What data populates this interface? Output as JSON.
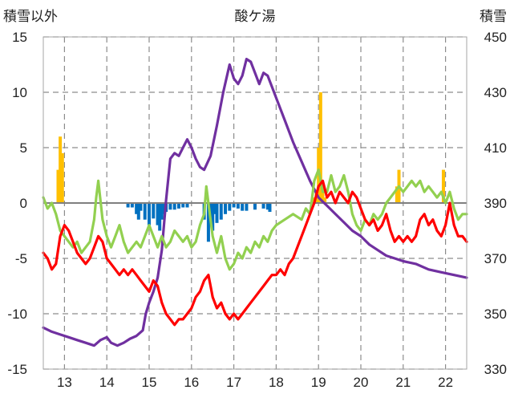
{
  "chart_data": {
    "type": "line",
    "title": "酸ケ湯",
    "y_left_label": "積雪以外",
    "y_right_label": "積雪",
    "xlim": [
      12.5,
      22.5
    ],
    "ylim_left": [
      -15,
      15
    ],
    "ylim_right": [
      330,
      450
    ],
    "x_ticks": [
      "13",
      "14",
      "15",
      "16",
      "17",
      "18",
      "19",
      "20",
      "21",
      "22"
    ],
    "y_left_ticks": [
      "15",
      "10",
      "5",
      "0",
      "-5",
      "-10",
      "-15"
    ],
    "y_right_ticks": [
      "450",
      "430",
      "410",
      "390",
      "370",
      "350",
      "330"
    ],
    "grid": true,
    "colors": {
      "snow_depth": "#7030a0",
      "max_temp": "#92d050",
      "min_temp": "#ff0000",
      "positive_bars": "#ffc000",
      "negative_bars": "#0070c0"
    },
    "series": [
      {
        "key": "snow_depth",
        "axis": "right",
        "values": [
          [
            12.5,
            345
          ],
          [
            12.7,
            343.5
          ],
          [
            12.9,
            342.5
          ],
          [
            13.1,
            341.5
          ],
          [
            13.3,
            340.5
          ],
          [
            13.5,
            339.5
          ],
          [
            13.7,
            338.5
          ],
          [
            13.85,
            340.5
          ],
          [
            14.0,
            341.5
          ],
          [
            14.1,
            339.5
          ],
          [
            14.25,
            338.5
          ],
          [
            14.4,
            339.5
          ],
          [
            14.55,
            341
          ],
          [
            14.7,
            342
          ],
          [
            14.85,
            344
          ],
          [
            14.92,
            350
          ],
          [
            15.0,
            354
          ],
          [
            15.1,
            358
          ],
          [
            15.2,
            363
          ],
          [
            15.3,
            373
          ],
          [
            15.4,
            391
          ],
          [
            15.5,
            406
          ],
          [
            15.6,
            408
          ],
          [
            15.7,
            407
          ],
          [
            15.8,
            410
          ],
          [
            15.9,
            413
          ],
          [
            16.0,
            410
          ],
          [
            16.1,
            406
          ],
          [
            16.2,
            403
          ],
          [
            16.3,
            402
          ],
          [
            16.45,
            407
          ],
          [
            16.6,
            418
          ],
          [
            16.75,
            430
          ],
          [
            16.9,
            440
          ],
          [
            17.0,
            435
          ],
          [
            17.1,
            433
          ],
          [
            17.2,
            436
          ],
          [
            17.3,
            442
          ],
          [
            17.4,
            441
          ],
          [
            17.5,
            437
          ],
          [
            17.6,
            433
          ],
          [
            17.7,
            437
          ],
          [
            17.8,
            436
          ],
          [
            17.9,
            432
          ],
          [
            18.0,
            428
          ],
          [
            18.2,
            420
          ],
          [
            18.4,
            412
          ],
          [
            18.6,
            405
          ],
          [
            18.8,
            398
          ],
          [
            19.0,
            392
          ],
          [
            19.2,
            389
          ],
          [
            19.4,
            386
          ],
          [
            19.6,
            383
          ],
          [
            19.8,
            380
          ],
          [
            20.0,
            378
          ],
          [
            20.2,
            375
          ],
          [
            20.4,
            373
          ],
          [
            20.6,
            371
          ],
          [
            20.8,
            370
          ],
          [
            21.0,
            369
          ],
          [
            21.3,
            368
          ],
          [
            21.6,
            366
          ],
          [
            21.9,
            365
          ],
          [
            22.2,
            364
          ],
          [
            22.5,
            363
          ]
        ]
      },
      {
        "key": "max_temp",
        "axis": "left",
        "values": [
          [
            12.5,
            0.5
          ],
          [
            12.6,
            -0.5
          ],
          [
            12.7,
            0
          ],
          [
            12.8,
            -1
          ],
          [
            12.9,
            -2.5
          ],
          [
            13.0,
            -3
          ],
          [
            13.1,
            -3.5
          ],
          [
            13.2,
            -4
          ],
          [
            13.3,
            -3.5
          ],
          [
            13.4,
            -4.5
          ],
          [
            13.5,
            -4
          ],
          [
            13.6,
            -3.5
          ],
          [
            13.7,
            -1.5
          ],
          [
            13.75,
            0.5
          ],
          [
            13.8,
            2
          ],
          [
            13.9,
            -1.5
          ],
          [
            14.0,
            -3
          ],
          [
            14.1,
            -4
          ],
          [
            14.2,
            -3
          ],
          [
            14.3,
            -2
          ],
          [
            14.4,
            -3.5
          ],
          [
            14.5,
            -4.5
          ],
          [
            14.6,
            -4
          ],
          [
            14.7,
            -3.5
          ],
          [
            14.8,
            -4
          ],
          [
            14.9,
            -3
          ],
          [
            15.0,
            -2
          ],
          [
            15.1,
            -3
          ],
          [
            15.2,
            -4
          ],
          [
            15.3,
            -3
          ],
          [
            15.4,
            -4
          ],
          [
            15.5,
            -3.5
          ],
          [
            15.6,
            -2.5
          ],
          [
            15.7,
            -3
          ],
          [
            15.8,
            -3.5
          ],
          [
            15.9,
            -3
          ],
          [
            16.0,
            -4
          ],
          [
            16.1,
            -3.5
          ],
          [
            16.2,
            -2
          ],
          [
            16.3,
            -1
          ],
          [
            16.35,
            1.5
          ],
          [
            16.4,
            0
          ],
          [
            16.5,
            -3
          ],
          [
            16.6,
            -4.5
          ],
          [
            16.7,
            -3
          ],
          [
            16.8,
            -5
          ],
          [
            16.9,
            -6
          ],
          [
            17.0,
            -5.5
          ],
          [
            17.1,
            -4.5
          ],
          [
            17.2,
            -5
          ],
          [
            17.3,
            -4
          ],
          [
            17.4,
            -4.5
          ],
          [
            17.5,
            -3.5
          ],
          [
            17.6,
            -4
          ],
          [
            17.7,
            -3
          ],
          [
            17.8,
            -3.5
          ],
          [
            17.9,
            -2.5
          ],
          [
            18.0,
            -2
          ],
          [
            18.2,
            -1.5
          ],
          [
            18.4,
            -1
          ],
          [
            18.6,
            -1.5
          ],
          [
            18.7,
            -0.5
          ],
          [
            18.8,
            -1
          ],
          [
            18.9,
            2
          ],
          [
            19.0,
            3
          ],
          [
            19.1,
            1
          ],
          [
            19.2,
            1
          ],
          [
            19.3,
            2.5
          ],
          [
            19.4,
            1
          ],
          [
            19.5,
            1.5
          ],
          [
            19.6,
            2.5
          ],
          [
            19.7,
            1
          ],
          [
            19.8,
            -1
          ],
          [
            19.9,
            -2
          ],
          [
            20.0,
            -2.5
          ],
          [
            20.1,
            -1.5
          ],
          [
            20.2,
            -2
          ],
          [
            20.3,
            -1
          ],
          [
            20.4,
            -1.5
          ],
          [
            20.5,
            -1
          ],
          [
            20.6,
            0
          ],
          [
            20.7,
            0.5
          ],
          [
            20.8,
            1
          ],
          [
            20.9,
            1.5
          ],
          [
            21.0,
            1
          ],
          [
            21.1,
            1.5
          ],
          [
            21.2,
            2
          ],
          [
            21.3,
            1.5
          ],
          [
            21.4,
            2
          ],
          [
            21.5,
            1
          ],
          [
            21.6,
            1.5
          ],
          [
            21.7,
            1
          ],
          [
            21.8,
            0.5
          ],
          [
            21.9,
            1
          ],
          [
            22.0,
            0
          ],
          [
            22.1,
            1
          ],
          [
            22.2,
            -0.5
          ],
          [
            22.3,
            -1.5
          ],
          [
            22.4,
            -1
          ],
          [
            22.5,
            -1
          ]
        ]
      },
      {
        "key": "min_temp",
        "axis": "left",
        "values": [
          [
            12.5,
            -4.5
          ],
          [
            12.6,
            -5
          ],
          [
            12.7,
            -6
          ],
          [
            12.8,
            -5.5
          ],
          [
            12.9,
            -3
          ],
          [
            13.0,
            -2
          ],
          [
            13.1,
            -2.5
          ],
          [
            13.2,
            -3.5
          ],
          [
            13.3,
            -4.5
          ],
          [
            13.4,
            -5
          ],
          [
            13.5,
            -5.5
          ],
          [
            13.6,
            -5
          ],
          [
            13.7,
            -4
          ],
          [
            13.8,
            -3
          ],
          [
            13.9,
            -3.5
          ],
          [
            14.0,
            -5
          ],
          [
            14.1,
            -5.5
          ],
          [
            14.2,
            -6
          ],
          [
            14.3,
            -6.5
          ],
          [
            14.4,
            -6
          ],
          [
            14.5,
            -6.5
          ],
          [
            14.6,
            -6
          ],
          [
            14.7,
            -6.5
          ],
          [
            14.8,
            -7
          ],
          [
            14.9,
            -7.5
          ],
          [
            15.0,
            -8
          ],
          [
            15.1,
            -7
          ],
          [
            15.2,
            -7.5
          ],
          [
            15.3,
            -9
          ],
          [
            15.4,
            -10
          ],
          [
            15.5,
            -10.5
          ],
          [
            15.6,
            -11
          ],
          [
            15.7,
            -10.5
          ],
          [
            15.8,
            -10.5
          ],
          [
            15.9,
            -10
          ],
          [
            16.0,
            -9.5
          ],
          [
            16.1,
            -8.5
          ],
          [
            16.2,
            -8
          ],
          [
            16.3,
            -7
          ],
          [
            16.4,
            -6.5
          ],
          [
            16.45,
            -7.5
          ],
          [
            16.5,
            -8.5
          ],
          [
            16.6,
            -9.5
          ],
          [
            16.7,
            -9
          ],
          [
            16.8,
            -10
          ],
          [
            16.9,
            -10.5
          ],
          [
            17.0,
            -10
          ],
          [
            17.1,
            -10.5
          ],
          [
            17.2,
            -10
          ],
          [
            17.3,
            -9.5
          ],
          [
            17.4,
            -9
          ],
          [
            17.5,
            -8.5
          ],
          [
            17.6,
            -8
          ],
          [
            17.7,
            -7.5
          ],
          [
            17.8,
            -7
          ],
          [
            17.9,
            -6.5
          ],
          [
            18.0,
            -6.5
          ],
          [
            18.1,
            -6
          ],
          [
            18.2,
            -6.5
          ],
          [
            18.3,
            -5.5
          ],
          [
            18.4,
            -5
          ],
          [
            18.5,
            -4
          ],
          [
            18.6,
            -3
          ],
          [
            18.7,
            -2
          ],
          [
            18.8,
            -1
          ],
          [
            18.9,
            0
          ],
          [
            19.0,
            1.5
          ],
          [
            19.1,
            2
          ],
          [
            19.2,
            0.5
          ],
          [
            19.3,
            1
          ],
          [
            19.4,
            0
          ],
          [
            19.5,
            1
          ],
          [
            19.6,
            0.5
          ],
          [
            19.7,
            0
          ],
          [
            19.8,
            1
          ],
          [
            19.9,
            0.5
          ],
          [
            20.0,
            -0.5
          ],
          [
            20.1,
            -1.5
          ],
          [
            20.2,
            -2
          ],
          [
            20.3,
            -1.5
          ],
          [
            20.4,
            -2.5
          ],
          [
            20.5,
            -2
          ],
          [
            20.6,
            -1
          ],
          [
            20.7,
            -2.5
          ],
          [
            20.8,
            -3.5
          ],
          [
            20.9,
            -3
          ],
          [
            21.0,
            -3.5
          ],
          [
            21.1,
            -3
          ],
          [
            21.2,
            -3.5
          ],
          [
            21.3,
            -3
          ],
          [
            21.4,
            -1.5
          ],
          [
            21.5,
            -1
          ],
          [
            21.6,
            -2
          ],
          [
            21.7,
            -1.5
          ],
          [
            21.8,
            -2.5
          ],
          [
            21.9,
            -3
          ],
          [
            22.0,
            -2
          ],
          [
            22.1,
            0
          ],
          [
            22.2,
            -2
          ],
          [
            22.3,
            -3
          ],
          [
            22.4,
            -3
          ],
          [
            22.5,
            -3.5
          ]
        ]
      },
      {
        "key": "positive_bars",
        "axis": "left",
        "type": "bar",
        "values": [
          [
            12.85,
            3
          ],
          [
            12.9,
            6
          ],
          [
            12.95,
            4.5
          ],
          [
            18.9,
            0.5
          ],
          [
            18.95,
            1
          ],
          [
            19.0,
            5
          ],
          [
            19.05,
            10
          ],
          [
            19.1,
            1.5
          ],
          [
            19.15,
            0.5
          ],
          [
            20.85,
            1.5
          ],
          [
            20.9,
            3
          ],
          [
            21.95,
            3
          ]
        ]
      },
      {
        "key": "negative_bars",
        "axis": "left",
        "type": "bar",
        "values": [
          [
            14.5,
            -0.4
          ],
          [
            14.6,
            -0.4
          ],
          [
            14.7,
            -1
          ],
          [
            14.75,
            -1.5
          ],
          [
            14.8,
            -0.7
          ],
          [
            14.9,
            -1.5
          ],
          [
            15.0,
            -2
          ],
          [
            15.1,
            -1.4
          ],
          [
            15.2,
            -2
          ],
          [
            15.25,
            -2.5
          ],
          [
            15.3,
            -1.5
          ],
          [
            15.35,
            -1
          ],
          [
            15.4,
            -0.8
          ],
          [
            15.5,
            -0.6
          ],
          [
            15.6,
            -0.6
          ],
          [
            15.7,
            -0.5
          ],
          [
            15.8,
            -0.4
          ],
          [
            15.9,
            -0.4
          ],
          [
            16.3,
            -1.5
          ],
          [
            16.4,
            -3.5
          ],
          [
            16.45,
            -2
          ],
          [
            16.5,
            -2.5
          ],
          [
            16.55,
            -1
          ],
          [
            16.6,
            -1.8
          ],
          [
            16.7,
            -1.5
          ],
          [
            16.8,
            -1
          ],
          [
            16.9,
            -0.7
          ],
          [
            17.0,
            -0.4
          ],
          [
            17.1,
            -0.5
          ],
          [
            17.2,
            -0.7
          ],
          [
            17.3,
            -0.7
          ],
          [
            17.5,
            -0.6
          ],
          [
            17.7,
            -0.5
          ],
          [
            17.8,
            -0.6
          ],
          [
            17.85,
            -0.8
          ]
        ]
      }
    ]
  }
}
